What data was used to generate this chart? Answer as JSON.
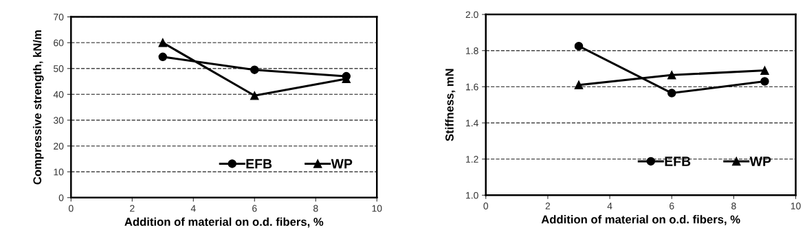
{
  "chart_data": [
    {
      "type": "line",
      "xlabel": "Addition of material on o.d. fibers, %",
      "ylabel": "Compressive strength, kN/m",
      "xlim": [
        0,
        10
      ],
      "xticks": [
        0,
        2,
        4,
        6,
        8,
        10
      ],
      "ylim": [
        0,
        70
      ],
      "yticks": [
        0,
        10,
        20,
        30,
        40,
        50,
        60,
        70
      ],
      "grid": "y",
      "legend": "bottom right",
      "x": [
        3,
        6,
        9
      ],
      "series": [
        {
          "name": "EFB",
          "color": "#000000",
          "marker": "circle",
          "values": [
            54.5,
            49.5,
            47
          ]
        },
        {
          "name": "WP",
          "color": "#000000",
          "marker": "triangle",
          "values": [
            60,
            39.5,
            46
          ]
        }
      ]
    },
    {
      "type": "line",
      "xlabel": "Addition of material on o.d. fibers, %",
      "ylabel": "Stiffness, mN",
      "xlim": [
        0,
        10
      ],
      "xticks": [
        0,
        2,
        4,
        6,
        8,
        10
      ],
      "ylim": [
        1.0,
        2.0
      ],
      "yticks": [
        {
          "value": 1.0,
          "label": "1.0"
        },
        1.2,
        1.4,
        1.6,
        1.8,
        {
          "value": 2.0,
          "label": "2.0"
        }
      ],
      "grid": "y",
      "legend": "bottom right",
      "x": [
        3,
        6,
        9
      ],
      "series": [
        {
          "name": "EFB",
          "color": "#000000",
          "marker": "circle",
          "values": [
            1.825,
            1.565,
            1.63
          ]
        },
        {
          "name": "WP",
          "color": "#000000",
          "marker": "triangle",
          "values": [
            1.61,
            1.665,
            1.69
          ]
        }
      ]
    }
  ]
}
